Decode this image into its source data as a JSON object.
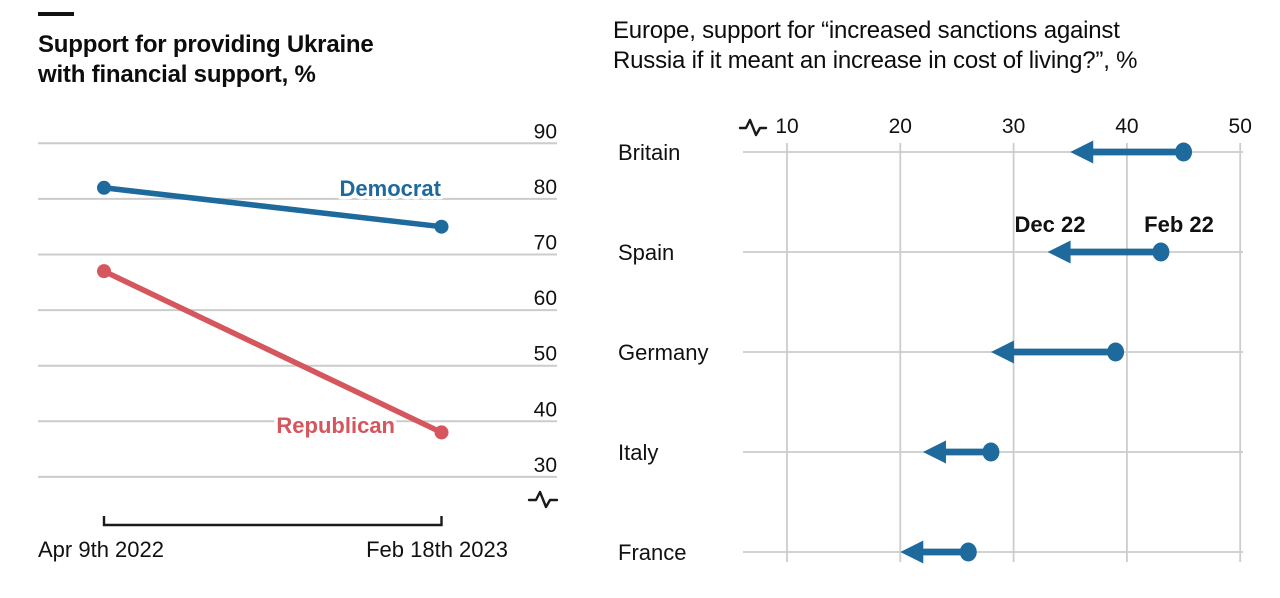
{
  "style": {
    "accent_blue": "#1E6A9D",
    "accent_red": "#D5565C",
    "grid": "#cccccc",
    "axis_black": "#1a1a1a",
    "text": "#111111",
    "bg": "#ffffff"
  },
  "ui": {
    "left_title_line1": "Support for providing Ukraine",
    "left_title_line2": "with financial support, %",
    "right_title_line1": "Europe, support for “increased sanctions against",
    "right_title_line2": "Russia if it meant an increase in cost of living?”, %"
  },
  "chart_data": [
    {
      "type": "line",
      "title": "Support for providing Ukraine with financial support, %",
      "x_categories": [
        "Apr 9th 2022",
        "Feb 18th 2023"
      ],
      "y_ticks": [
        90,
        80,
        70,
        60,
        50,
        40,
        30
      ],
      "ylim": [
        27,
        93
      ],
      "grid": "on",
      "axis_break": true,
      "legend_position": "inline-labels",
      "series": [
        {
          "name": "Democrat",
          "color": "#1E6A9D",
          "values": [
            82,
            75
          ]
        },
        {
          "name": "Republican",
          "color": "#D5565C",
          "values": [
            67,
            38
          ]
        }
      ]
    },
    {
      "type": "arrow",
      "title": "Europe, support for “increased sanctions against Russia if it meant an increase in cost of living?”, %",
      "categories": [
        "Britain",
        "Spain",
        "Germany",
        "Italy",
        "France"
      ],
      "x_ticks": [
        10,
        20,
        30,
        40,
        50
      ],
      "xlim": [
        6,
        51
      ],
      "grid": "on",
      "axis_break": true,
      "color": "#1E6A9D",
      "series": [
        {
          "name": "Feb 22",
          "values": [
            45,
            43,
            39,
            28,
            26
          ]
        },
        {
          "name": "Dec 22",
          "values": [
            35,
            33,
            28,
            22,
            20
          ]
        }
      ],
      "annotations": [
        {
          "label": "Dec 22",
          "above_row": "Spain",
          "marks": "arrow-tip"
        },
        {
          "label": "Feb 22",
          "above_row": "Spain",
          "marks": "dot"
        }
      ]
    }
  ]
}
